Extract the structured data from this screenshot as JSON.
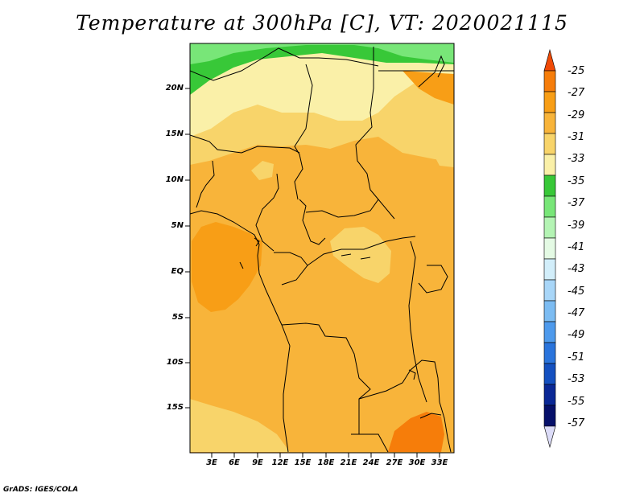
{
  "title": "Temperature at 300hPa [C], VT: 2020021115",
  "credit": "GrADS: IGES/COLA",
  "map": {
    "lat_labels": [
      "20N",
      "15N",
      "10N",
      "5N",
      "EQ",
      "5S",
      "10S",
      "15S"
    ],
    "lon_labels": [
      "3E",
      "6E",
      "9E",
      "12E",
      "15E",
      "18E",
      "21E",
      "24E",
      "27E",
      "30E",
      "33E"
    ]
  },
  "colorbar": {
    "labels": [
      "-25",
      "-27",
      "-29",
      "-31",
      "-33",
      "-35",
      "-37",
      "-39",
      "-41",
      "-43",
      "-45",
      "-47",
      "-49",
      "-51",
      "-53",
      "-55",
      "-57"
    ],
    "colors": [
      "#f04a06",
      "#f67d0a",
      "#f89e16",
      "#f8b43a",
      "#f8d46a",
      "#faf0a8",
      "#38c838",
      "#78e678",
      "#b4f4b4",
      "#e4fae4",
      "#d2eefa",
      "#a8d6f8",
      "#7cbcf2",
      "#4e9aec",
      "#2a74dc",
      "#1450c0",
      "#0a2896",
      "#06106a"
    ],
    "top_color": "#f04a06",
    "bottom_color": "#dcdcf8"
  }
}
